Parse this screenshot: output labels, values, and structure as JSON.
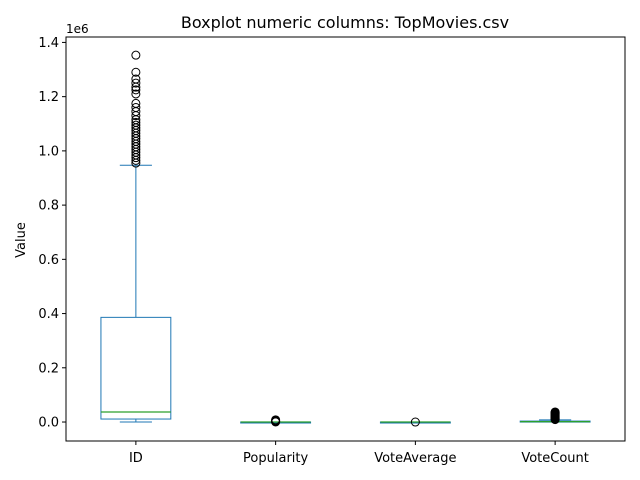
{
  "chart_data": {
    "type": "boxplot",
    "title": "Boxplot numeric columns: TopMovies.csv",
    "xlabel": "",
    "ylabel": "Value",
    "y_multiplier_label": "1e6",
    "ylim": [
      -70000,
      1420000
    ],
    "y_ticks": [
      0,
      200000,
      400000,
      600000,
      800000,
      1000000,
      1200000,
      1400000
    ],
    "y_tick_labels": [
      "0.0",
      "0.2",
      "0.4",
      "0.6",
      "0.8",
      "1.0",
      "1.2",
      "1.4"
    ],
    "grid": false,
    "colors": {
      "box": "#1f77b4",
      "median": "#2ca02c",
      "flier": "#000000"
    },
    "categories": [
      "ID",
      "Popularity",
      "VoteAverage",
      "VoteCount"
    ],
    "boxes": [
      {
        "name": "ID",
        "whisker_low": 2,
        "q1": 11000,
        "median": 37000,
        "q3": 386000,
        "whisker_high": 947000,
        "outliers": [
          955000,
          965000,
          975000,
          985000,
          995000,
          1005000,
          1015000,
          1025000,
          1035000,
          1045000,
          1055000,
          1065000,
          1075000,
          1085000,
          1095000,
          1105000,
          1115000,
          1130000,
          1145000,
          1160000,
          1175000,
          1210000,
          1225000,
          1235000,
          1250000,
          1265000,
          1290000,
          1353000
        ]
      },
      {
        "name": "Popularity",
        "whisker_low": 0,
        "q1": 15,
        "median": 25,
        "q3": 45,
        "whisker_high": 100,
        "outliers": [
          500,
          1000,
          2000,
          3000,
          5000,
          8000
        ]
      },
      {
        "name": "VoteAverage",
        "whisker_low": 5,
        "q1": 6.5,
        "median": 7,
        "q3": 7.5,
        "whisker_high": 9,
        "outliers": [
          0
        ]
      },
      {
        "name": "VoteCount",
        "whisker_low": 300,
        "q1": 800,
        "median": 1500,
        "q3": 3500,
        "whisker_high": 8000,
        "outliers": [
          9000,
          11000,
          13000,
          15000,
          17000,
          19000,
          21000,
          23000,
          25000,
          27000,
          29000,
          31000,
          33000,
          35000,
          37000
        ]
      }
    ]
  }
}
